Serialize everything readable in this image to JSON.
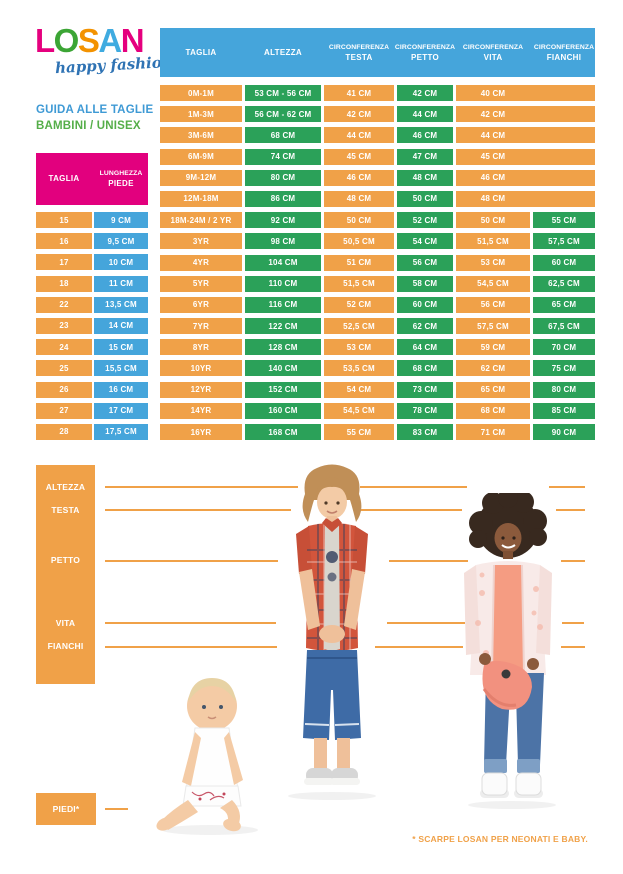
{
  "brand": {
    "letters": [
      {
        "char": "L",
        "color": "#E5007E"
      },
      {
        "char": "O",
        "color": "#3CA535"
      },
      {
        "char": "S",
        "color": "#F39200"
      },
      {
        "char": "A",
        "color": "#3FABE0"
      },
      {
        "char": "N",
        "color": "#E5007E"
      }
    ],
    "tagline": "happy fashion"
  },
  "intro": {
    "line1": "GUIDA ALLE TAGLIE",
    "line2": "BAMBINI / UNISEX"
  },
  "shoe_table": {
    "headers": [
      {
        "small": "",
        "label": "TAGLIA"
      },
      {
        "small": "LUNGHEZZA",
        "label": "PIEDE"
      }
    ],
    "rows": [
      [
        "15",
        "9 CM"
      ],
      [
        "16",
        "9,5 CM"
      ],
      [
        "17",
        "10 CM"
      ],
      [
        "18",
        "11 CM"
      ],
      [
        "22",
        "13,5 CM"
      ],
      [
        "23",
        "14 CM"
      ],
      [
        "24",
        "15 CM"
      ],
      [
        "25",
        "15,5 CM"
      ],
      [
        "26",
        "16 CM"
      ],
      [
        "27",
        "17 CM"
      ],
      [
        "28",
        "17,5 CM"
      ]
    ]
  },
  "size_table": {
    "headers": [
      {
        "small": "",
        "label": "TAGLIA"
      },
      {
        "small": "",
        "label": "ALTEZZA"
      },
      {
        "small": "CIRCONFERENZA",
        "label": "TESTA"
      },
      {
        "small": "CIRCONFERENZA",
        "label": "PETTO"
      },
      {
        "small": "CIRCONFERENZA",
        "label": "VITA"
      },
      {
        "small": "CIRCONFERENZA",
        "label": "FIANCHI"
      }
    ],
    "rows": [
      [
        "0M-1M",
        "53 CM - 56 CM",
        "41 CM",
        "42 CM",
        "40 CM",
        ""
      ],
      [
        "1M-3M",
        "56 CM - 62 CM",
        "42 CM",
        "44 CM",
        "42 CM",
        ""
      ],
      [
        "3M-6M",
        "68 CM",
        "44 CM",
        "46 CM",
        "44 CM",
        ""
      ],
      [
        "6M-9M",
        "74 CM",
        "45 CM",
        "47 CM",
        "45 CM",
        ""
      ],
      [
        "9M-12M",
        "80 CM",
        "46 CM",
        "48 CM",
        "46 CM",
        ""
      ],
      [
        "12M-18M",
        "86 CM",
        "48 CM",
        "50 CM",
        "48 CM",
        ""
      ],
      [
        "18M-24M / 2 YR",
        "92 CM",
        "50 CM",
        "52 CM",
        "50 CM",
        "55 CM"
      ],
      [
        "3YR",
        "98 CM",
        "50,5 CM",
        "54 CM",
        "51,5 CM",
        "57,5 CM"
      ],
      [
        "4YR",
        "104 CM",
        "51 CM",
        "56 CM",
        "53 CM",
        "60 CM"
      ],
      [
        "5YR",
        "110 CM",
        "51,5 CM",
        "58 CM",
        "54,5 CM",
        "62,5 CM"
      ],
      [
        "6YR",
        "116 CM",
        "52 CM",
        "60 CM",
        "56 CM",
        "65 CM"
      ],
      [
        "7YR",
        "122 CM",
        "52,5 CM",
        "62 CM",
        "57,5 CM",
        "67,5 CM"
      ],
      [
        "8YR",
        "128 CM",
        "53 CM",
        "64 CM",
        "59 CM",
        "70 CM"
      ],
      [
        "10YR",
        "140 CM",
        "53,5 CM",
        "68 CM",
        "62 CM",
        "75 CM"
      ],
      [
        "12YR",
        "152 CM",
        "54 CM",
        "73 CM",
        "65 CM",
        "80 CM"
      ],
      [
        "14YR",
        "160 CM",
        "54,5 CM",
        "78 CM",
        "68 CM",
        "85 CM"
      ],
      [
        "16YR",
        "168 CM",
        "55 CM",
        "83 CM",
        "71 CM",
        "90 CM"
      ]
    ]
  },
  "measurements": {
    "labels": [
      "ALTEZZA",
      "TESTA",
      "PETTO",
      "VITA",
      "FIANCHI"
    ],
    "piedi_label": "PIEDI*"
  },
  "footnote": "* SCARPE LOSAN PER NEONATI E BABY.",
  "colors": {
    "orange": "#F0A148",
    "green": "#2BA159",
    "blue": "#45A5DB",
    "pink": "#E2007E",
    "footnote_orange": "#F0A148"
  }
}
